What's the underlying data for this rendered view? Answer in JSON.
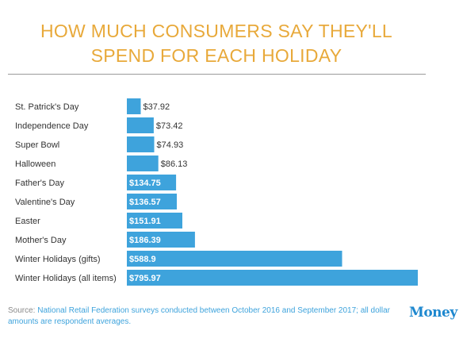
{
  "title": "HOW MUCH CONSUMERS SAY THEY'LL SPEND FOR EACH HOLIDAY",
  "footer": {
    "source_label": "Source: ",
    "source_text": "National Retail Federation surveys conducted between October 2016 and September 2017; all dollar amounts are respondent averages."
  },
  "logo": "Money",
  "colors": {
    "bar": "#3ea3dc",
    "title": "#e8a93a",
    "logo": "#1e88cf"
  },
  "chart_data": {
    "type": "bar",
    "orientation": "horizontal",
    "title": "HOW MUCH CONSUMERS SAY THEY'LL SPEND FOR EACH HOLIDAY",
    "categories": [
      "St. Patrick's Day",
      "Independence Day",
      "Super Bowl",
      "Halloween",
      "Father's Day",
      "Valentine's Day",
      "Easter",
      "Mother's Day",
      "Winter Holidays (gifts)",
      "Winter Holidays (all items)"
    ],
    "values": [
      37.92,
      73.42,
      74.93,
      86.13,
      134.75,
      136.57,
      151.91,
      186.39,
      588.9,
      795.97
    ],
    "data_labels": [
      "$37.92",
      "$73.42",
      "$74.93",
      "$86.13",
      "$134.75",
      "$136.57",
      "$151.91",
      "$186.39",
      "$588.9",
      "$795.97"
    ],
    "xlim": [
      0,
      795.97
    ],
    "grid": false,
    "legend": "none"
  }
}
